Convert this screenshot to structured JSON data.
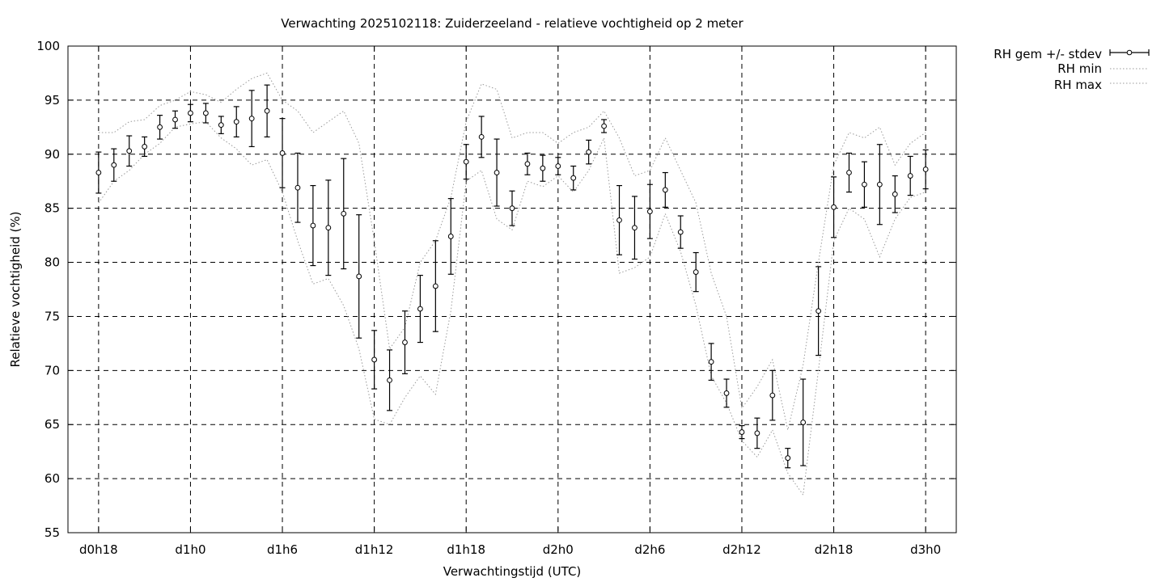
{
  "chart_data": {
    "type": "scatter",
    "title": "Verwachting 2025102118: Zuiderzeeland - relatieve vochtigheid op 2 meter",
    "xlabel": "Verwachtingstijd (UTC)",
    "ylabel": "Relatieve vochtigheid (%)",
    "ylim": [
      55,
      100
    ],
    "yticks": [
      55,
      60,
      65,
      70,
      75,
      80,
      85,
      90,
      95,
      100
    ],
    "xlim_hours": [
      -2,
      56
    ],
    "xticks": [
      {
        "hour": 0,
        "label": "d0h18"
      },
      {
        "hour": 6,
        "label": "d1h0"
      },
      {
        "hour": 12,
        "label": "d1h6"
      },
      {
        "hour": 18,
        "label": "d1h12"
      },
      {
        "hour": 24,
        "label": "d1h18"
      },
      {
        "hour": 30,
        "label": "d2h0"
      },
      {
        "hour": 36,
        "label": "d2h6"
      },
      {
        "hour": 42,
        "label": "d2h12"
      },
      {
        "hour": 48,
        "label": "d2h18"
      },
      {
        "hour": 54,
        "label": "d3h0"
      }
    ],
    "grid": true,
    "legend_position": "top-right-outside",
    "series": [
      {
        "name": "RH gem +/- stdev",
        "x": [
          0,
          1,
          2,
          3,
          4,
          5,
          6,
          7,
          8,
          9,
          10,
          11,
          12,
          13,
          14,
          15,
          16,
          17,
          18,
          19,
          20,
          21,
          22,
          23,
          24,
          25,
          26,
          27,
          28,
          29,
          30,
          31,
          32,
          33,
          34,
          35,
          36,
          37,
          38,
          39,
          40,
          41,
          42,
          43,
          44,
          45,
          46,
          47,
          48,
          49,
          50,
          51,
          52,
          53,
          54
        ],
        "mean": [
          88.3,
          89.0,
          90.3,
          90.7,
          92.5,
          93.2,
          93.8,
          93.8,
          92.7,
          93.0,
          93.3,
          94.0,
          90.1,
          86.9,
          83.4,
          83.2,
          84.5,
          78.7,
          71.0,
          69.1,
          72.6,
          75.7,
          77.8,
          82.4,
          89.3,
          91.6,
          88.3,
          85.0,
          89.1,
          88.7,
          88.9,
          87.8,
          90.2,
          92.6,
          83.9,
          83.2,
          84.7,
          86.7,
          82.8,
          79.1,
          70.8,
          67.9,
          64.3,
          64.2,
          67.7,
          61.9,
          65.2,
          75.5,
          85.1,
          88.3,
          87.2,
          87.2,
          86.3,
          88.0,
          88.6
        ],
        "stdev": [
          1.9,
          1.5,
          1.4,
          0.9,
          1.1,
          0.8,
          0.8,
          0.9,
          0.8,
          1.4,
          2.6,
          2.4,
          3.2,
          3.2,
          3.7,
          4.4,
          5.1,
          5.7,
          2.7,
          2.8,
          2.9,
          3.1,
          4.2,
          3.5,
          1.6,
          1.9,
          3.1,
          1.6,
          1.0,
          1.2,
          0.8,
          1.1,
          1.1,
          0.6,
          3.2,
          2.9,
          2.5,
          1.6,
          1.5,
          1.8,
          1.7,
          1.3,
          0.6,
          1.4,
          2.3,
          0.9,
          4.0,
          4.1,
          2.8,
          1.8,
          2.1,
          3.7,
          1.7,
          1.8,
          1.8
        ]
      },
      {
        "name": "RH min",
        "x": [
          0,
          1,
          2,
          3,
          4,
          5,
          6,
          7,
          8,
          9,
          10,
          11,
          12,
          13,
          14,
          15,
          16,
          17,
          18,
          19,
          20,
          21,
          22,
          23,
          24,
          25,
          26,
          27,
          28,
          29,
          30,
          31,
          32,
          33,
          34,
          35,
          36,
          37,
          38,
          39,
          40,
          41,
          42,
          43,
          44,
          45,
          46,
          47,
          48,
          49,
          50,
          51,
          52,
          53,
          54
        ],
        "values": [
          85.5,
          87.5,
          88.5,
          90.0,
          91.0,
          92.5,
          92.8,
          93.0,
          91.5,
          90.5,
          89.0,
          89.5,
          86.5,
          82.0,
          78.0,
          78.5,
          76.0,
          72.0,
          65.5,
          65.0,
          67.5,
          69.5,
          67.8,
          75.5,
          87.5,
          88.5,
          84.0,
          83.0,
          87.5,
          87.0,
          88.0,
          86.5,
          88.5,
          91.5,
          79.0,
          79.5,
          80.5,
          84.5,
          81.0,
          76.0,
          69.5,
          67.0,
          63.5,
          62.0,
          64.5,
          60.5,
          58.5,
          70.0,
          82.0,
          85.0,
          84.0,
          80.5,
          84.0,
          86.0,
          86.5
        ]
      },
      {
        "name": "RH max",
        "x": [
          0,
          1,
          2,
          3,
          4,
          5,
          6,
          7,
          8,
          9,
          10,
          11,
          12,
          13,
          14,
          15,
          16,
          17,
          18,
          19,
          20,
          21,
          22,
          23,
          24,
          25,
          26,
          27,
          28,
          29,
          30,
          31,
          32,
          33,
          34,
          35,
          36,
          37,
          38,
          39,
          40,
          41,
          42,
          43,
          44,
          45,
          46,
          47,
          48,
          49,
          50,
          51,
          52,
          53,
          54
        ],
        "values": [
          92.0,
          92.0,
          93.0,
          93.2,
          94.5,
          95.0,
          95.8,
          95.5,
          94.8,
          96.0,
          97.0,
          97.5,
          95.0,
          94.0,
          92.0,
          93.0,
          94.0,
          91.0,
          82.0,
          72.0,
          74.0,
          80.0,
          82.0,
          86.0,
          93.0,
          96.5,
          96.0,
          91.5,
          92.0,
          92.0,
          91.0,
          92.0,
          92.5,
          94.0,
          91.5,
          88.0,
          88.5,
          91.5,
          88.5,
          85.5,
          79.0,
          75.0,
          66.5,
          68.5,
          71.0,
          64.5,
          70.5,
          80.0,
          89.0,
          92.0,
          91.5,
          92.5,
          89.0,
          91.0,
          92.0
        ]
      }
    ]
  }
}
